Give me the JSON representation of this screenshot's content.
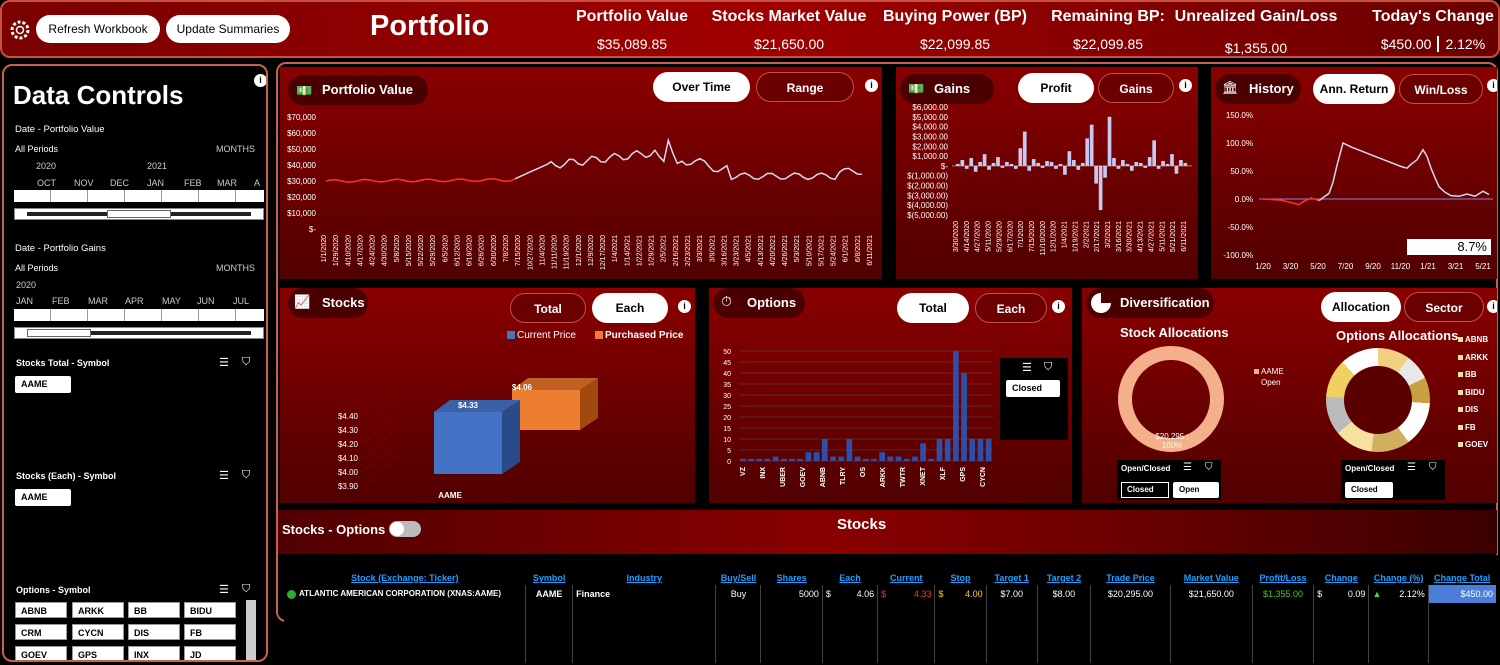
{
  "header": {
    "refresh_label": "Refresh Workbook",
    "update_label": "Update Summaries",
    "title": "Portfolio",
    "kpis": [
      {
        "label": "Portfolio Value",
        "value": "$35,089.85"
      },
      {
        "label": "Stocks Market Value",
        "value": "$21,650.00"
      },
      {
        "label": "Buying Power (BP)",
        "value": "$22,099.85"
      },
      {
        "label": "Remaining BP:",
        "value": "$22,099.85"
      },
      {
        "label": "Unrealized Gain/Loss",
        "value": "$1,355.00"
      },
      {
        "label": "Today's Change",
        "value": "$450.00",
        "value2": "2.12%"
      }
    ]
  },
  "sidebar": {
    "title": "Data Controls",
    "date_pv": {
      "label": "Date - Portfolio Value",
      "period": "All Periods",
      "unit": "MONTHS",
      "years": [
        "2020",
        "2021"
      ],
      "months": [
        "OCT",
        "NOV",
        "DEC",
        "JAN",
        "FEB",
        "MAR",
        "A"
      ]
    },
    "date_pg": {
      "label": "Date - Portfolio Gains",
      "period": "All Periods",
      "unit": "MONTHS",
      "years": [
        "2020"
      ],
      "months": [
        "JAN",
        "FEB",
        "MAR",
        "APR",
        "MAY",
        "JUN",
        "JUL"
      ]
    },
    "stocks_total": {
      "label": "Stocks Total  - Symbol",
      "items": [
        "AAME"
      ]
    },
    "stocks_each": {
      "label": "Stocks (Each) - Symbol",
      "items": [
        "AAME"
      ]
    },
    "options": {
      "label": "Options - Symbol",
      "items": [
        "ABNB",
        "ARKK",
        "BB",
        "BIDU",
        "CRM",
        "CYCN",
        "DIS",
        "FB",
        "GOEV",
        "GPS",
        "INX",
        "JD"
      ]
    }
  },
  "pv": {
    "title": "Portfolio Value",
    "tab1": "Over Time",
    "tab2": "Range",
    "yticks": [
      "$70,000",
      "$60,000",
      "$50,000",
      "$40,000",
      "$30,000",
      "$20,000",
      "$10,000",
      "$-"
    ],
    "xticks": [
      "1/1/2020",
      "1/29/2020",
      "4/10/2020",
      "4/17/2020",
      "4/24/2020",
      "4/30/2020",
      "5/8/2020",
      "5/15/2020",
      "5/22/2020",
      "5/29/2020",
      "6/5/2020",
      "6/12/2020",
      "6/19/2020",
      "6/26/2020",
      "6/30/2020",
      "7/8/2020",
      "7/15/2020",
      "10/27/2020",
      "11/4/2020",
      "11/11/2020",
      "11/19/2020",
      "12/1/2020",
      "12/9/2020",
      "12/17/2020",
      "1/4/2021",
      "1/14/2021",
      "1/22/2021",
      "1/29/2021",
      "2/5/2021",
      "2/16/2021",
      "2/23/2021",
      "3/3/2021",
      "3/9/2021",
      "3/16/2021",
      "3/23/2021",
      "4/5/2021",
      "4/13/2021",
      "4/20/2021",
      "4/26/2021",
      "5/3/2021",
      "5/10/2021",
      "5/17/2021",
      "5/24/2021",
      "6/1/2021",
      "6/8/2021",
      "6/11/2021"
    ]
  },
  "gains": {
    "title": "Gains",
    "tab1": "Profit",
    "tab2": "Gains",
    "yticks": [
      "$6,000.00",
      "$5,000.00",
      "$4,000.00",
      "$3,000.00",
      "$2,000.00",
      "$1,000.00",
      "$-",
      "$(1,000.00)",
      "$(2,000.00)",
      "$(3,000.00)",
      "$(4,000.00)",
      "$(5,000.00)"
    ],
    "xticks": [
      "3/30/2020",
      "4/14/2020",
      "4/27/2020",
      "5/11/2020",
      "5/29/2020",
      "6/17/2020",
      "7/1/2020",
      "7/15/2020",
      "11/10/2020",
      "12/1/2020",
      "1/4/2021",
      "1/19/2021",
      "2/2/2021",
      "2/17/2021",
      "3/2/2021",
      "3/16/2021",
      "3/30/2021",
      "4/13/2021",
      "4/27/2021",
      "5/11/2021",
      "5/21/2021",
      "6/11/2021"
    ]
  },
  "history": {
    "title": "History",
    "tab1": "Ann. Return",
    "tab2": "Win/Loss",
    "yticks": [
      "150.0%",
      "100.0%",
      "50.0%",
      "0.0%",
      "-50.0%",
      "-100.0%"
    ],
    "xticks": [
      "1/20",
      "3/20",
      "5/20",
      "7/20",
      "9/20",
      "11/20",
      "1/21",
      "3/21",
      "5/21"
    ],
    "value": "8.7%"
  },
  "stocks": {
    "title": "Stocks",
    "tab1": "Total",
    "tab2": "Each",
    "legend1": "Current Price",
    "legend2": "Purchased Price",
    "yticks": [
      "$4.40",
      "$4.30",
      "$4.20",
      "$4.10",
      "$4.00",
      "$3.90"
    ],
    "bar1": "$4.33",
    "bar2": "$4.06",
    "category": "AAME"
  },
  "options": {
    "title": "Options",
    "tab1": "Total",
    "tab2": "Each",
    "yticks": [
      "50",
      "45",
      "40",
      "35",
      "30",
      "25",
      "20",
      "15",
      "10",
      "5",
      "0"
    ],
    "xticks": [
      "VZ",
      "INX",
      "UBER",
      "GOEV",
      "ABNB",
      "TLRY",
      "OS",
      "ARKK",
      "TWTR",
      "XNET",
      "XLF",
      "GPS",
      "CYCN"
    ],
    "filter": "Closed"
  },
  "diversification": {
    "title": "Diversification",
    "tab1": "Allocation",
    "tab2": "Sector",
    "stock_title": "Stock Allocations",
    "stock_legend1": "AAME",
    "stock_legend2": "Open",
    "stock_label": "$20,295 ;",
    "stock_label2": "100%",
    "opt_title": "Options Allocations",
    "opt_legend": [
      "ABNB",
      "ARKK",
      "BB",
      "BIDU",
      "DIS",
      "FB",
      "GOEV"
    ],
    "filter1_label": "Open/Closed",
    "f1a": "Closed",
    "f1b": "Open",
    "filter2_label": "Open/Closed",
    "f2a": "Closed"
  },
  "stocks_options": {
    "label": "Stocks - Options",
    "section": "Stocks"
  },
  "table": {
    "headers": [
      "Stock (Exchange: Ticker)",
      "Symbol",
      "Industry",
      "Buy/Sell",
      "Shares",
      "Each",
      "Current",
      "Stop",
      "Target 1",
      "Target 2",
      "Trade Price",
      "Market Value",
      "Profit/Loss",
      "Change",
      "Change (%)",
      "Change Total"
    ],
    "row": {
      "name": "ATLANTIC AMERICAN CORPORATION (XNAS:AAME)",
      "symbol": "AAME",
      "industry": "Finance",
      "buysell": "Buy",
      "shares": "5000",
      "each_s": "$",
      "each": "4.06",
      "cur_s": "$",
      "current": "4.33",
      "stop_s": "$",
      "stop": "4.00",
      "t1": "$7.00",
      "t2": "$8.00",
      "trade": "$20,295.00",
      "market": "$21,650.00",
      "pl": "$1,355.00",
      "chg_s": "$",
      "chg": "0.09",
      "chgp": "2.12%",
      "chgt": "$450.00"
    }
  },
  "colors": {
    "accent": "#a00000",
    "series_current": "#4472c4",
    "series_purchased": "#ed7d31",
    "line": "#d8d8f0",
    "loss": "#ff3030"
  }
}
